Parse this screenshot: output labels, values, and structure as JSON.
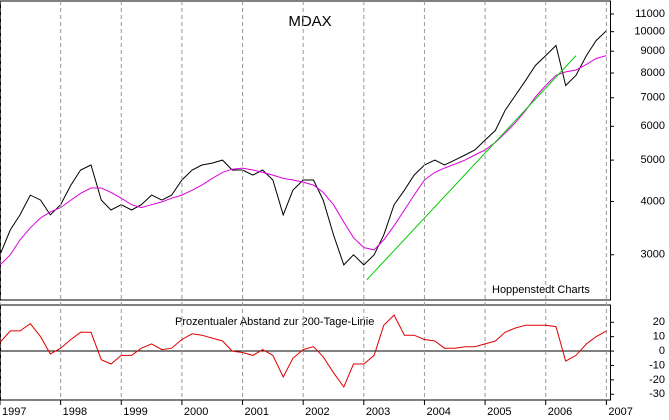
{
  "chart_data": [
    {
      "type": "line",
      "title": "MDAX",
      "note": "Hoppenstedt Charts",
      "log_scale": true,
      "xlim": [
        1997,
        2007.06
      ],
      "ylim": [
        2350,
        11800
      ],
      "yticks": [
        3000,
        4000,
        5000,
        6000,
        7000,
        8000,
        9000,
        10000,
        11000
      ],
      "x": [
        1997,
        1997.17,
        1997.33,
        1997.5,
        1997.67,
        1997.83,
        1998,
        1998.17,
        1998.33,
        1998.5,
        1998.67,
        1998.83,
        1999,
        1999.17,
        1999.33,
        1999.5,
        1999.67,
        1999.83,
        2000,
        2000.17,
        2000.33,
        2000.5,
        2000.67,
        2000.83,
        2001,
        2001.17,
        2001.33,
        2001.5,
        2001.67,
        2001.83,
        2002,
        2002.17,
        2002.33,
        2002.5,
        2002.67,
        2002.83,
        2003,
        2003.17,
        2003.33,
        2003.5,
        2003.67,
        2003.83,
        2004,
        2004.17,
        2004.33,
        2004.5,
        2004.67,
        2004.83,
        2005,
        2005.17,
        2005.33,
        2005.5,
        2005.67,
        2005.83,
        2006,
        2006.17,
        2006.33,
        2006.5,
        2006.67,
        2006.83,
        2007
      ],
      "series": [
        {
          "color": "#000000",
          "values": [
            3000,
            3430,
            3720,
            4140,
            4030,
            3720,
            3930,
            4370,
            4740,
            4870,
            4030,
            3820,
            3930,
            3820,
            3930,
            4140,
            4030,
            4140,
            4490,
            4740,
            4870,
            4920,
            5000,
            4740,
            4740,
            4610,
            4740,
            4490,
            3720,
            4250,
            4490,
            4490,
            4030,
            3340,
            2840,
            3000,
            2840,
            3000,
            3340,
            3930,
            4250,
            4610,
            4870,
            5000,
            4870,
            5000,
            5140,
            5280,
            5570,
            5870,
            6540,
            7090,
            7690,
            8330,
            8790,
            9280,
            7480,
            7900,
            8790,
            9530,
            10050
          ]
        },
        {
          "color": "#dd00dd",
          "values": [
            2840,
            3000,
            3250,
            3470,
            3660,
            3780,
            3870,
            4030,
            4180,
            4300,
            4300,
            4200,
            4070,
            3930,
            3870,
            3930,
            3990,
            4070,
            4140,
            4250,
            4370,
            4530,
            4680,
            4760,
            4790,
            4740,
            4680,
            4610,
            4530,
            4490,
            4440,
            4370,
            4200,
            3930,
            3580,
            3290,
            3120,
            3080,
            3250,
            3510,
            3820,
            4140,
            4490,
            4680,
            4790,
            4890,
            5000,
            5140,
            5280,
            5500,
            5780,
            6120,
            6540,
            7030,
            7480,
            7900,
            8050,
            8130,
            8380,
            8650,
            8790
          ]
        },
        {
          "color": "#00cc00",
          "x": [
            2003.05,
            2006.5
          ],
          "values": [
            2620,
            8790
          ]
        }
      ]
    },
    {
      "type": "line",
      "title": "Prozentualer Abstand zur 200-Tage-Linie",
      "zero_line": true,
      "xlim": [
        1997,
        2007.06
      ],
      "ylim": [
        -34,
        32
      ],
      "xticks": [
        1997,
        1998,
        1999,
        2000,
        2001,
        2002,
        2003,
        2004,
        2005,
        2006,
        2007
      ],
      "yticks": [
        -30,
        -20,
        -10,
        0,
        10,
        20
      ],
      "x": [
        1997,
        1997.17,
        1997.33,
        1997.5,
        1997.67,
        1997.83,
        1998,
        1998.17,
        1998.33,
        1998.5,
        1998.67,
        1998.83,
        1999,
        1999.17,
        1999.33,
        1999.5,
        1999.67,
        1999.83,
        2000,
        2000.17,
        2000.33,
        2000.5,
        2000.67,
        2000.83,
        2001,
        2001.17,
        2001.33,
        2001.5,
        2001.67,
        2001.83,
        2002,
        2002.17,
        2002.33,
        2002.5,
        2002.67,
        2002.83,
        2003,
        2003.17,
        2003.33,
        2003.5,
        2003.67,
        2003.83,
        2004,
        2004.17,
        2004.33,
        2004.5,
        2004.67,
        2004.83,
        2005,
        2005.17,
        2005.33,
        2005.5,
        2005.67,
        2005.83,
        2006,
        2006.17,
        2006.33,
        2006.5,
        2006.67,
        2006.83,
        2007
      ],
      "series": [
        {
          "color": "#e00000",
          "values": [
            6,
            14,
            14,
            19,
            10,
            -2,
            2,
            8,
            13,
            13,
            -6,
            -9,
            -3,
            -3,
            2,
            5,
            1,
            2,
            8,
            12,
            11,
            9,
            7,
            0,
            -1,
            -3,
            1,
            -3,
            -18,
            -5,
            1,
            3,
            -4,
            -15,
            -25,
            -9,
            -9,
            -3,
            18,
            25,
            11,
            11,
            8,
            7,
            2,
            2,
            3,
            3,
            5,
            7,
            13,
            16,
            18,
            18,
            18,
            17,
            -7,
            -3,
            5,
            10,
            14
          ]
        }
      ]
    }
  ]
}
